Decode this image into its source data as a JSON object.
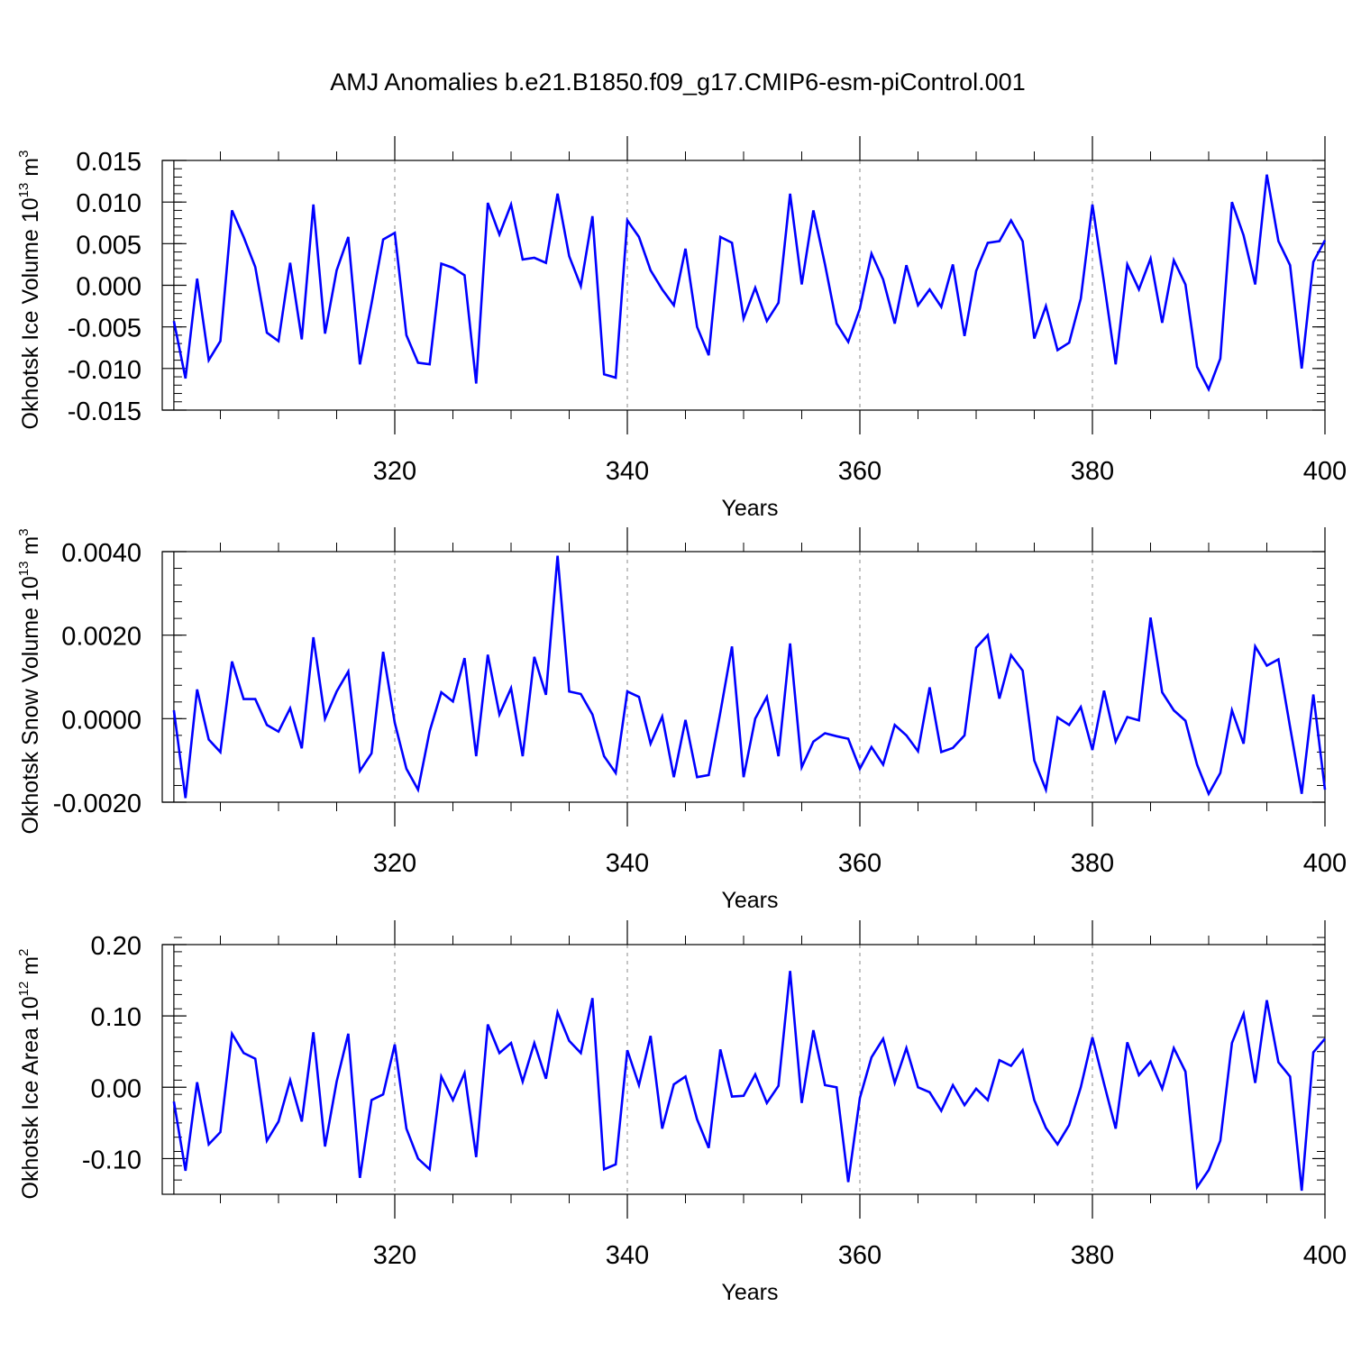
{
  "title": "AMJ Anomalies b.e21.B1850.f09_g17.CMIP6-esm-piControl.001",
  "line_color": "#0000ff",
  "chart_data": [
    {
      "type": "line",
      "ylabel": {
        "base": "Okhotsk Ice Volume 10",
        "exp": "13",
        "unit": " m",
        "unit_exp": "3"
      },
      "xlabel": "Years",
      "xlim": [
        301,
        400
      ],
      "ylim": [
        -0.015,
        0.015
      ],
      "yticks": [
        -0.015,
        -0.01,
        -0.005,
        0.0,
        0.005,
        0.01,
        0.015
      ],
      "ytick_labels": [
        "-0.015",
        "-0.010",
        "-0.005",
        "0.000",
        "0.005",
        "0.010",
        "0.015"
      ],
      "ytick_minor_step": 0.001,
      "xticks": [
        320,
        340,
        360,
        380,
        400
      ],
      "xtick_labels": [
        "320",
        "340",
        "360",
        "380",
        "400"
      ],
      "xtick_minor": [
        305,
        310,
        315,
        325,
        330,
        335,
        345,
        350,
        355,
        365,
        370,
        375,
        385,
        390,
        395
      ],
      "grid": "dashed vertical at major x ticks",
      "series": [
        {
          "x_start": 301,
          "values": [
            -0.0043,
            -0.0112,
            0.0008,
            -0.009,
            -0.0067,
            0.009,
            0.0058,
            0.0022,
            -0.0057,
            -0.0067,
            0.0027,
            -0.0065,
            0.0097,
            -0.0058,
            0.0018,
            0.0058,
            -0.0095,
            -0.0022,
            0.0055,
            0.0063,
            -0.006,
            -0.0093,
            -0.0095,
            0.0026,
            0.0021,
            0.0012,
            -0.0118,
            0.0099,
            0.0061,
            0.0097,
            0.0031,
            0.0033,
            0.0027,
            0.011,
            0.0035,
            -0.0001,
            0.0083,
            -0.0107,
            -0.0111,
            0.0078,
            0.0058,
            0.0018,
            -0.0005,
            -0.0024,
            0.0044,
            -0.005,
            -0.0084,
            0.0058,
            0.0051,
            -0.004,
            -0.0003,
            -0.0043,
            -0.0021,
            0.011,
            0.0001,
            0.009,
            0.0025,
            -0.0046,
            -0.0068,
            -0.0028,
            0.0038,
            0.0007,
            -0.0046,
            0.0024,
            -0.0024,
            -0.0005,
            -0.0026,
            0.0025,
            -0.0061,
            0.0017,
            0.0051,
            0.0053,
            0.0078,
            0.0053,
            -0.0064,
            -0.0025,
            -0.0078,
            -0.0069,
            -0.0016,
            0.0097,
            0.0003,
            -0.0095,
            0.0025,
            -0.0005,
            0.0032,
            -0.0045,
            0.003,
            0.0001,
            -0.0098,
            -0.0125,
            -0.0088,
            0.01,
            0.006,
            0.0001,
            0.0133,
            0.0053,
            0.0024,
            -0.01,
            0.0028,
            0.0054
          ]
        }
      ]
    },
    {
      "type": "line",
      "ylabel": {
        "base": "Okhotsk Snow Volume 10",
        "exp": "13",
        "unit": " m",
        "unit_exp": "3"
      },
      "xlabel": "Years",
      "xlim": [
        301,
        400
      ],
      "ylim": [
        -0.002,
        0.004
      ],
      "yticks": [
        -0.002,
        0.0,
        0.002,
        0.004
      ],
      "ytick_labels": [
        "-0.0020",
        "0.0000",
        "0.0020",
        "0.0040"
      ],
      "ytick_minor_step": 0.0004,
      "xticks": [
        320,
        340,
        360,
        380,
        400
      ],
      "xtick_labels": [
        "320",
        "340",
        "360",
        "380",
        "400"
      ],
      "xtick_minor": [
        305,
        310,
        315,
        325,
        330,
        335,
        345,
        350,
        355,
        365,
        370,
        375,
        385,
        390,
        395
      ],
      "grid": "dashed vertical at major x ticks",
      "series": [
        {
          "x_start": 301,
          "values": [
            0.0002,
            -0.0019,
            0.0007,
            -0.0005,
            -0.0008,
            0.00137,
            0.00047,
            0.00047,
            -0.00015,
            -0.00031,
            0.00025,
            -0.00071,
            0.00195,
            0.0,
            0.00065,
            0.00113,
            -0.00125,
            -0.00083,
            0.0016,
            -0.0001,
            -0.0012,
            -0.0017,
            -0.0003,
            0.00063,
            0.00041,
            0.00145,
            -0.0009,
            0.00153,
            0.0001,
            0.00073,
            -0.0009,
            0.00148,
            0.00057,
            0.0039,
            0.00065,
            0.00059,
            0.0001,
            -0.0009,
            -0.0013,
            0.00065,
            0.00052,
            -0.0006,
            5e-05,
            -0.0014,
            -3e-05,
            -0.0014,
            -0.00135,
            0.00015,
            0.00173,
            -0.0014,
            0.0,
            0.00052,
            -0.0009,
            0.0018,
            -0.00116,
            -0.00055,
            -0.00035,
            -0.00042,
            -0.00048,
            -0.0012,
            -0.00068,
            -0.0011,
            -0.00015,
            -0.0004,
            -0.00078,
            0.00075,
            -0.0008,
            -0.0007,
            -0.0004,
            0.0017,
            0.002,
            0.00048,
            0.00152,
            0.00115,
            -0.001,
            -0.0017,
            3e-05,
            -0.00015,
            0.00028,
            -0.00075,
            0.00067,
            -0.00055,
            4e-05,
            -4e-05,
            0.00242,
            0.00063,
            0.0002,
            -5e-05,
            -0.0011,
            -0.0018,
            -0.0013,
            0.0002,
            -0.0006,
            0.00173,
            0.00127,
            0.00142,
            -0.0002,
            -0.0018,
            0.00058,
            -0.0017
          ]
        }
      ]
    },
    {
      "type": "line",
      "ylabel": {
        "base": "Okhotsk Ice Area 10",
        "exp": "12",
        "unit": " m",
        "unit_exp": "2"
      },
      "xlabel": "Years",
      "xlim": [
        301,
        400
      ],
      "ylim": [
        -0.15,
        0.2
      ],
      "yticks": [
        -0.1,
        0.0,
        0.1,
        0.2
      ],
      "ytick_labels": [
        "-0.10",
        "0.00",
        "0.10",
        "0.20"
      ],
      "ytick_minor_step": 0.02,
      "xticks": [
        320,
        340,
        360,
        380,
        400
      ],
      "xtick_labels": [
        "320",
        "340",
        "360",
        "380",
        "400"
      ],
      "xtick_minor": [
        305,
        310,
        315,
        325,
        330,
        335,
        345,
        350,
        355,
        365,
        370,
        375,
        385,
        390,
        395
      ],
      "grid": "dashed vertical at major x ticks",
      "series": [
        {
          "x_start": 301,
          "values": [
            -0.02,
            -0.117,
            0.007,
            -0.08,
            -0.063,
            0.075,
            0.048,
            0.04,
            -0.075,
            -0.048,
            0.01,
            -0.048,
            0.077,
            -0.083,
            0.008,
            0.075,
            -0.127,
            -0.018,
            -0.01,
            0.06,
            -0.058,
            -0.1,
            -0.115,
            0.015,
            -0.018,
            0.02,
            -0.098,
            0.088,
            0.048,
            0.062,
            0.008,
            0.062,
            0.012,
            0.105,
            0.065,
            0.048,
            0.125,
            -0.115,
            -0.108,
            0.052,
            0.003,
            0.072,
            -0.058,
            0.004,
            0.015,
            -0.045,
            -0.085,
            0.053,
            -0.013,
            -0.012,
            0.018,
            -0.022,
            0.002,
            0.163,
            -0.022,
            0.08,
            0.003,
            0.0,
            -0.133,
            -0.015,
            0.042,
            0.068,
            0.006,
            0.055,
            0.0,
            -0.007,
            -0.033,
            0.003,
            -0.025,
            -0.002,
            -0.018,
            0.038,
            0.03,
            0.052,
            -0.018,
            -0.057,
            -0.08,
            -0.053,
            0.0,
            0.07,
            0.005,
            -0.058,
            0.063,
            0.017,
            0.036,
            -0.002,
            0.055,
            0.022,
            -0.14,
            -0.116,
            -0.075,
            0.062,
            0.103,
            0.006,
            0.122,
            0.035,
            0.015,
            -0.145,
            0.049,
            0.068
          ]
        }
      ]
    }
  ]
}
